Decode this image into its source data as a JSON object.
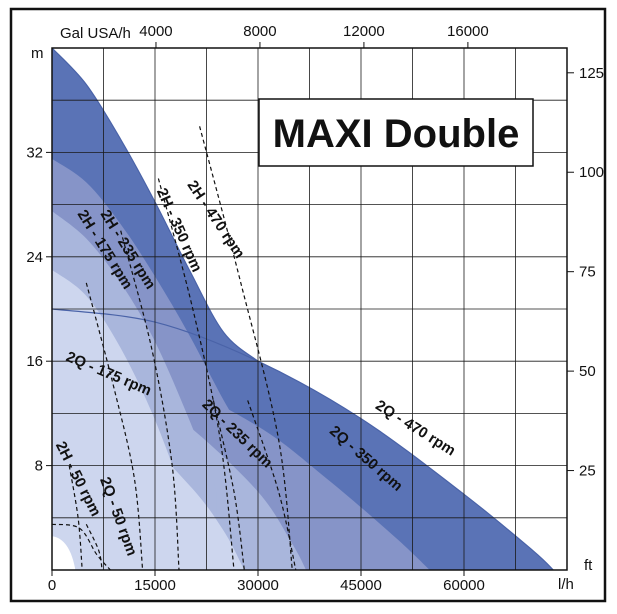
{
  "chart_data": {
    "type": "area",
    "title": "MAXI Double",
    "colors": {
      "band_470": "#5a73b6",
      "band_350": "#8694c8",
      "band_235": "#a9b6dc",
      "band_175": "#cdd6ee",
      "plot_bg": "#ffffff",
      "grid": "#1a1a1a"
    },
    "axes": {
      "bottom": {
        "unit": "l/h",
        "ticks": [
          "0",
          "15000",
          "30000",
          "45000",
          "60000"
        ],
        "tick_values": [
          0,
          15000,
          30000,
          45000,
          60000
        ],
        "range": [
          0,
          75000
        ]
      },
      "top": {
        "unit": "Gal USA/h",
        "ticks": [
          "4000",
          "8000",
          "12000",
          "16000"
        ],
        "tick_values": [
          4000,
          8000,
          12000,
          16000
        ]
      },
      "left": {
        "unit": "m",
        "ticks": [
          "8",
          "16",
          "24",
          "32"
        ],
        "tick_values": [
          8,
          16,
          24,
          32
        ],
        "range": [
          0,
          40
        ]
      },
      "right": {
        "unit": "ft",
        "ticks": [
          "25",
          "50",
          "75",
          "100",
          "125"
        ],
        "tick_values": [
          25,
          50,
          75,
          100,
          125
        ]
      }
    },
    "grid": true,
    "series": [
      {
        "name": "2H - 470 rpm",
        "x": [
          0,
          5000,
          10000,
          15000,
          20000,
          25000,
          30000
        ],
        "y": [
          40,
          37.2,
          33,
          28.2,
          23,
          18.2,
          16
        ]
      },
      {
        "name": "2H - 350 rpm",
        "x": [
          0,
          5000,
          10000,
          15000,
          20000,
          25000,
          29000
        ],
        "y": [
          31.5,
          29.7,
          26.5,
          22.5,
          18,
          13,
          9.5
        ]
      },
      {
        "name": "2H - 235 rpm",
        "x": [
          0,
          5000,
          10000,
          15000,
          20000,
          24000
        ],
        "y": [
          27.5,
          25.4,
          22,
          17.5,
          11.5,
          6
        ]
      },
      {
        "name": "2H - 175 rpm",
        "x": [
          0,
          5000,
          10000,
          15000,
          20000
        ],
        "y": [
          23,
          21,
          17,
          11.5,
          4.5
        ]
      },
      {
        "name": "2Q - 470 rpm",
        "x": [
          0,
          15000,
          30000,
          45000,
          60000,
          70000,
          73000
        ],
        "y": [
          20,
          19,
          16,
          11.6,
          5.8,
          1.5,
          0
        ]
      },
      {
        "name": "2Q - 350 rpm",
        "x": [
          0,
          15000,
          30000,
          40000,
          50000,
          55000
        ],
        "y": [
          17,
          15,
          11,
          7,
          2.5,
          0
        ]
      },
      {
        "name": "2Q - 235 rpm",
        "x": [
          0,
          10000,
          20000,
          30000,
          35000,
          37000
        ],
        "y": [
          16,
          14.8,
          11,
          6,
          2,
          0
        ]
      },
      {
        "name": "2Q - 175 rpm",
        "x": [
          0,
          10000,
          20000,
          25000,
          28000
        ],
        "y": [
          13,
          11.5,
          6.5,
          3,
          0
        ]
      },
      {
        "name": "2H - 50 rpm",
        "x": [
          0,
          2000,
          4000,
          5000
        ],
        "y": [
          8,
          4,
          1,
          0
        ]
      },
      {
        "name": "2Q - 50 rpm",
        "x": [
          0,
          3000,
          6000,
          8000,
          9000
        ],
        "y": [
          3.5,
          3,
          1.5,
          0.5,
          0
        ]
      }
    ]
  }
}
